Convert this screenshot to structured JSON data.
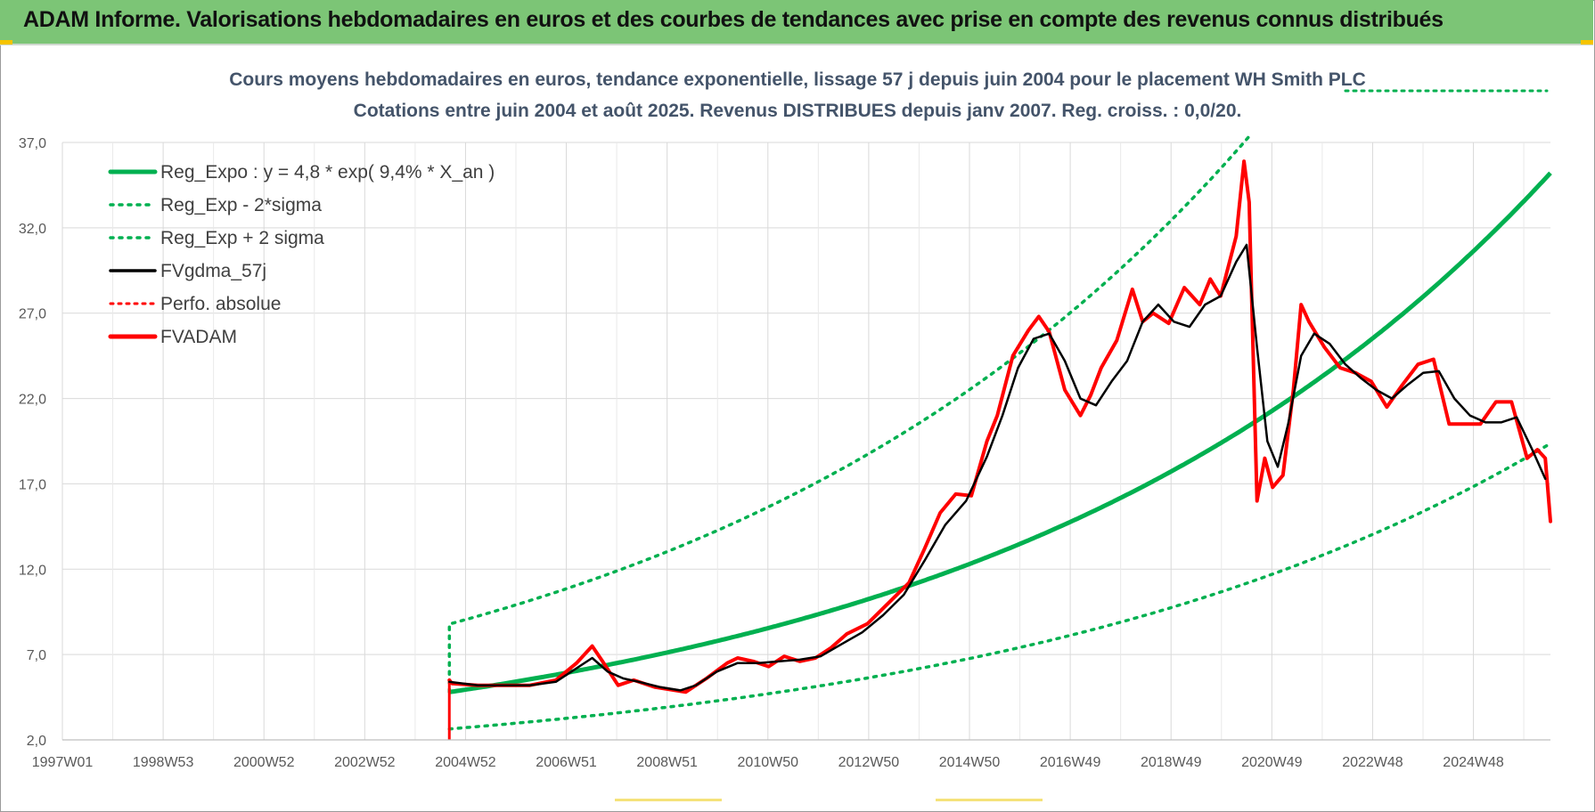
{
  "banner": {
    "title": "ADAM Informe. Valorisations hebdomadaires en euros et des courbes de tendances avec prise en compte des revenus connus distribués"
  },
  "colors": {
    "banner_bg": "#7cc576",
    "reg_expo": "#00b050",
    "fvgdma": "#000000",
    "fvadam": "#ff0000",
    "perfo": "#ff0000",
    "title": "#44546a",
    "grid": "#d9d9d9"
  },
  "chart_data": {
    "type": "line",
    "title_line1": "Cours moyens hebdomadaires en euros, tendance exponentielle, lissage 57 j depuis juin 2004 pour le placement WH Smith PLC",
    "title_line2": "Cotations entre juin 2004 et août 2025. Revenus DISTRIBUES depuis janv 2007. Reg. croiss. : 0,0/20.",
    "x_ticks": [
      "1997W01",
      "1998W53",
      "2000W52",
      "2002W52",
      "2004W52",
      "2006W51",
      "2008W51",
      "2010W50",
      "2012W50",
      "2014W50",
      "2016W49",
      "2018W49",
      "2020W49",
      "2022W48",
      "2024W48"
    ],
    "x_range": [
      1997.0,
      2025.65
    ],
    "y_ticks": [
      "2,0",
      "7,0",
      "12,0",
      "17,0",
      "22,0",
      "27,0",
      "32,0",
      "37,0"
    ],
    "ylim": [
      2,
      37
    ],
    "grid": true,
    "legend_position": "top-left",
    "legend": [
      {
        "label": "Reg_Expo : y = 4,8 * exp( 9,4% *  X_an )",
        "style": "solid-green-thick"
      },
      {
        "label": "Reg_Exp - 2*sigma",
        "style": "dotted-green"
      },
      {
        "label": "Reg_Exp + 2 sigma",
        "style": "dotted-green"
      },
      {
        "label": "FVgdma_57j",
        "style": "solid-black"
      },
      {
        "label": "Perfo. absolue",
        "style": "dotted-red"
      },
      {
        "label": "FVADAM",
        "style": "solid-red-thick"
      }
    ],
    "reg_expo": {
      "a": 4.8,
      "rate": 0.094,
      "start": 2004.45,
      "end": 2025.65,
      "lower_factor": 0.55,
      "upper_factor": 1.83
    },
    "series": [
      {
        "name": "FVADAM",
        "x": [
          2004.45,
          2004.5,
          2005.0,
          2005.5,
          2006.0,
          2006.5,
          2006.9,
          2007.2,
          2007.4,
          2007.7,
          2008.0,
          2008.4,
          2008.8,
          2009.0,
          2009.4,
          2009.8,
          2010.0,
          2010.3,
          2010.6,
          2010.9,
          2011.2,
          2011.5,
          2011.8,
          2012.1,
          2012.5,
          2012.9,
          2013.3,
          2013.6,
          2013.9,
          2014.2,
          2014.5,
          2014.8,
          2015.0,
          2015.3,
          2015.6,
          2015.8,
          2016.0,
          2016.3,
          2016.6,
          2016.8,
          2017.0,
          2017.3,
          2017.6,
          2017.8,
          2018.0,
          2018.3,
          2018.6,
          2018.9,
          2019.1,
          2019.3,
          2019.6,
          2019.75,
          2019.85,
          2020.0,
          2020.15,
          2020.3,
          2020.5,
          2020.7,
          2020.85,
          2021.0,
          2021.3,
          2021.6,
          2021.9,
          2022.2,
          2022.5,
          2022.8,
          2023.1,
          2023.4,
          2023.7,
          2024.0,
          2024.3,
          2024.6,
          2024.9,
          2025.2,
          2025.4,
          2025.55,
          2025.65
        ],
        "values": [
          5.5,
          5.3,
          5.2,
          5.2,
          5.2,
          5.5,
          6.5,
          7.5,
          6.6,
          5.2,
          5.5,
          5.1,
          4.9,
          4.8,
          5.6,
          6.5,
          6.8,
          6.6,
          6.3,
          6.9,
          6.6,
          6.8,
          7.4,
          8.2,
          8.8,
          10.0,
          11.2,
          13.2,
          15.3,
          16.4,
          16.3,
          19.5,
          21.0,
          24.5,
          26.0,
          26.8,
          25.9,
          22.5,
          21.0,
          22.2,
          23.8,
          25.4,
          28.4,
          26.5,
          27.0,
          26.4,
          28.5,
          27.5,
          29.0,
          28.0,
          31.5,
          35.9,
          33.5,
          16.0,
          18.5,
          16.8,
          17.5,
          22.5,
          27.5,
          26.5,
          25.0,
          23.8,
          23.5,
          23.0,
          21.5,
          22.8,
          24.0,
          24.3,
          20.5,
          20.5,
          20.5,
          21.8,
          21.8,
          18.5,
          19.0,
          18.5,
          14.8
        ]
      },
      {
        "name": "FVgdma_57j",
        "x": [
          2004.45,
          2005.0,
          2005.5,
          2006.0,
          2006.5,
          2006.9,
          2007.2,
          2007.5,
          2007.8,
          2008.1,
          2008.5,
          2008.9,
          2009.2,
          2009.6,
          2010.0,
          2010.4,
          2010.8,
          2011.2,
          2011.6,
          2012.0,
          2012.4,
          2012.8,
          2013.2,
          2013.6,
          2014.0,
          2014.4,
          2014.8,
          2015.1,
          2015.4,
          2015.7,
          2016.0,
          2016.3,
          2016.6,
          2016.9,
          2017.2,
          2017.5,
          2017.8,
          2018.1,
          2018.4,
          2018.7,
          2019.0,
          2019.3,
          2019.6,
          2019.8,
          2020.0,
          2020.2,
          2020.4,
          2020.6,
          2020.85,
          2021.1,
          2021.4,
          2021.7,
          2022.0,
          2022.3,
          2022.6,
          2022.9,
          2023.2,
          2023.5,
          2023.8,
          2024.1,
          2024.4,
          2024.7,
          2025.0,
          2025.3,
          2025.55
        ],
        "values": [
          5.4,
          5.2,
          5.2,
          5.2,
          5.4,
          6.2,
          6.8,
          6.0,
          5.6,
          5.4,
          5.1,
          4.9,
          5.2,
          6.0,
          6.5,
          6.5,
          6.6,
          6.7,
          6.9,
          7.6,
          8.3,
          9.3,
          10.5,
          12.5,
          14.6,
          16.0,
          18.6,
          21.0,
          23.8,
          25.5,
          25.8,
          24.2,
          22.0,
          21.6,
          23.0,
          24.2,
          26.5,
          27.5,
          26.5,
          26.2,
          27.5,
          28.0,
          30.0,
          31.0,
          25.0,
          19.5,
          18.0,
          20.5,
          24.5,
          25.8,
          25.2,
          24.0,
          23.2,
          22.5,
          22.0,
          22.8,
          23.5,
          23.6,
          22.0,
          21.0,
          20.6,
          20.6,
          20.9,
          19.0,
          17.3
        ]
      }
    ]
  }
}
